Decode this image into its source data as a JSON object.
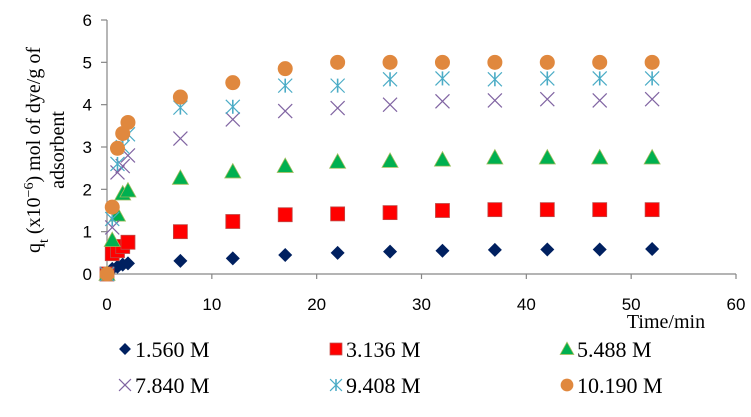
{
  "chart_data": {
    "type": "scatter",
    "title": "",
    "xlabel": "Time/min",
    "ylabel_line1": "q",
    "ylabel_sub": "t",
    "ylabel_rest": " (x10",
    "ylabel_sup": "−6",
    "ylabel_tail": ") mol of dye/g of",
    "ylabel_line2": "adsorbent",
    "xlim": [
      0,
      60
    ],
    "ylim": [
      0,
      6
    ],
    "xticks": [
      "0",
      "10",
      "20",
      "30",
      "40",
      "50",
      "60"
    ],
    "yticks": [
      "0",
      "1",
      "2",
      "3",
      "4",
      "5",
      "6"
    ],
    "grid": false,
    "legend_position": "bottom",
    "x": [
      0,
      0.5,
      1,
      1.5,
      2,
      7,
      12,
      17,
      22,
      27,
      32,
      37,
      42,
      47,
      52
    ],
    "series": [
      {
        "name": "1.560 M",
        "marker": "diamond",
        "color": "#002060",
        "values": [
          0,
          0.12,
          0.17,
          0.22,
          0.25,
          0.31,
          0.37,
          0.45,
          0.5,
          0.53,
          0.55,
          0.57,
          0.58,
          0.58,
          0.59
        ]
      },
      {
        "name": "3.136 M",
        "marker": "square",
        "color": "#ff0000",
        "values": [
          0,
          0.48,
          0.55,
          0.65,
          0.75,
          1.0,
          1.24,
          1.4,
          1.42,
          1.45,
          1.5,
          1.52,
          1.52,
          1.52,
          1.52
        ]
      },
      {
        "name": "5.488 M",
        "marker": "triangle",
        "color": "#00b050",
        "values": [
          0,
          0.8,
          1.4,
          1.9,
          1.97,
          2.27,
          2.42,
          2.55,
          2.65,
          2.67,
          2.7,
          2.75,
          2.75,
          2.75,
          2.75
        ]
      },
      {
        "name": "7.840 M",
        "marker": "x",
        "color": "#8064a2",
        "values": [
          0,
          1.1,
          2.4,
          2.55,
          2.8,
          3.2,
          3.65,
          3.85,
          3.92,
          4.0,
          4.08,
          4.1,
          4.13,
          4.1,
          4.13
        ]
      },
      {
        "name": "9.408 M",
        "marker": "asterisk",
        "color": "#4bacc6",
        "values": [
          0,
          1.3,
          2.6,
          3.0,
          3.3,
          3.93,
          3.95,
          4.45,
          4.45,
          4.6,
          4.62,
          4.6,
          4.62,
          4.62,
          4.62
        ]
      },
      {
        "name": "10.190 M",
        "marker": "circle",
        "color": "#e0883e",
        "values": [
          0,
          1.58,
          2.97,
          3.32,
          3.58,
          4.18,
          4.52,
          4.85,
          5.0,
          5.0,
          5.0,
          5.0,
          5.0,
          5.0,
          5.0
        ]
      }
    ]
  }
}
